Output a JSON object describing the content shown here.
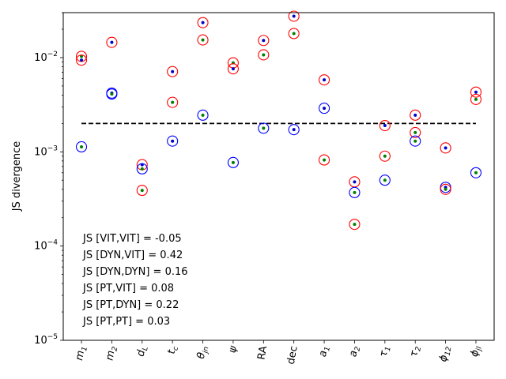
{
  "chart_data": {
    "type": "scatter",
    "title": "",
    "xlabel": "",
    "ylabel": "JS divergence",
    "yscale": "log",
    "ylim": [
      1e-05,
      0.03
    ],
    "y_ticks": [
      {
        "value": 1e-05,
        "base": "10",
        "exp": "−5"
      },
      {
        "value": 0.0001,
        "base": "10",
        "exp": "−4"
      },
      {
        "value": 0.001,
        "base": "10",
        "exp": "−3"
      },
      {
        "value": 0.01,
        "base": "10",
        "exp": "−2"
      }
    ],
    "categories": [
      {
        "main": "m",
        "sub": "1"
      },
      {
        "main": "m",
        "sub": "2"
      },
      {
        "main": "d",
        "sub": "L"
      },
      {
        "main": "t",
        "sub": "c"
      },
      {
        "main": "θ",
        "sub": "jn"
      },
      {
        "main": "ψ",
        "sub": ""
      },
      {
        "main": "RA",
        "sub": "",
        "upright": true
      },
      {
        "main": "dec",
        "sub": "",
        "upright": true
      },
      {
        "main": "a",
        "sub": "1"
      },
      {
        "main": "a",
        "sub": "2"
      },
      {
        "main": "τ",
        "sub": "1"
      },
      {
        "main": "τ",
        "sub": "2"
      },
      {
        "main": "ϕ",
        "sub": "12"
      },
      {
        "main": "ϕ",
        "sub": "jl"
      }
    ],
    "reference_line": {
      "value": 0.002,
      "style": "dashed",
      "color": "#000000"
    },
    "points": [
      {
        "x": 0,
        "y": 0.0103,
        "ring": "#ff0000",
        "dot": "#008000"
      },
      {
        "x": 0,
        "y": 0.0094,
        "ring": "#ff0000",
        "dot": "#0000cc"
      },
      {
        "x": 0,
        "y": 0.00113,
        "ring": "#0000ff",
        "dot": "#008000"
      },
      {
        "x": 1,
        "y": 0.0145,
        "ring": "#ff0000",
        "dot": "#0000cc"
      },
      {
        "x": 1,
        "y": 0.0042,
        "ring": "#0000ff",
        "dot": "#0000cc"
      },
      {
        "x": 1,
        "y": 0.0041,
        "ring": "#0000ff",
        "dot": "#008000"
      },
      {
        "x": 2,
        "y": 0.00073,
        "ring": "#ff0000",
        "dot": "#0000cc"
      },
      {
        "x": 2,
        "y": 0.00066,
        "ring": "#0000ff",
        "dot": "#008000"
      },
      {
        "x": 2,
        "y": 0.00039,
        "ring": "#ff0000",
        "dot": "#008000"
      },
      {
        "x": 3,
        "y": 0.0071,
        "ring": "#ff0000",
        "dot": "#0000cc"
      },
      {
        "x": 3,
        "y": 0.00335,
        "ring": "#ff0000",
        "dot": "#008000"
      },
      {
        "x": 3,
        "y": 0.0013,
        "ring": "#0000ff",
        "dot": "#0000cc"
      },
      {
        "x": 4,
        "y": 0.0235,
        "ring": "#ff0000",
        "dot": "#0000cc"
      },
      {
        "x": 4,
        "y": 0.0154,
        "ring": "#ff0000",
        "dot": "#008000"
      },
      {
        "x": 4,
        "y": 0.00245,
        "ring": "#0000ff",
        "dot": "#008000"
      },
      {
        "x": 5,
        "y": 0.0088,
        "ring": "#ff0000",
        "dot": "#008000"
      },
      {
        "x": 5,
        "y": 0.0076,
        "ring": "#ff0000",
        "dot": "#0000cc"
      },
      {
        "x": 5,
        "y": 0.00077,
        "ring": "#0000ff",
        "dot": "#008000"
      },
      {
        "x": 6,
        "y": 0.0152,
        "ring": "#ff0000",
        "dot": "#0000cc"
      },
      {
        "x": 6,
        "y": 0.0107,
        "ring": "#ff0000",
        "dot": "#008000"
      },
      {
        "x": 6,
        "y": 0.00178,
        "ring": "#0000ff",
        "dot": "#008000"
      },
      {
        "x": 7,
        "y": 0.0275,
        "ring": "#ff0000",
        "dot": "#0000cc"
      },
      {
        "x": 7,
        "y": 0.018,
        "ring": "#ff0000",
        "dot": "#008000"
      },
      {
        "x": 7,
        "y": 0.00172,
        "ring": "#0000ff",
        "dot": "#0000cc"
      },
      {
        "x": 8,
        "y": 0.0058,
        "ring": "#ff0000",
        "dot": "#0000cc"
      },
      {
        "x": 8,
        "y": 0.0029,
        "ring": "#0000ff",
        "dot": "#0000cc"
      },
      {
        "x": 8,
        "y": 0.00082,
        "ring": "#ff0000",
        "dot": "#008000"
      },
      {
        "x": 9,
        "y": 0.00048,
        "ring": "#ff0000",
        "dot": "#0000cc"
      },
      {
        "x": 9,
        "y": 0.00037,
        "ring": "#0000ff",
        "dot": "#008000"
      },
      {
        "x": 9,
        "y": 0.00017,
        "ring": "#ff0000",
        "dot": "#008000"
      },
      {
        "x": 10,
        "y": 0.0019,
        "ring": "#ff0000",
        "dot": "#0000cc"
      },
      {
        "x": 10,
        "y": 0.0009,
        "ring": "#ff0000",
        "dot": "#008000"
      },
      {
        "x": 10,
        "y": 0.0005,
        "ring": "#0000ff",
        "dot": "#008000"
      },
      {
        "x": 11,
        "y": 0.00245,
        "ring": "#ff0000",
        "dot": "#0000cc"
      },
      {
        "x": 11,
        "y": 0.0016,
        "ring": "#ff0000",
        "dot": "#008000"
      },
      {
        "x": 11,
        "y": 0.0013,
        "ring": "#0000ff",
        "dot": "#008000"
      },
      {
        "x": 12,
        "y": 0.0011,
        "ring": "#ff0000",
        "dot": "#0000cc"
      },
      {
        "x": 12,
        "y": 0.00042,
        "ring": "#0000ff",
        "dot": "#0000cc"
      },
      {
        "x": 12,
        "y": 0.0004,
        "ring": "#ff0000",
        "dot": "#008000"
      },
      {
        "x": 13,
        "y": 0.0043,
        "ring": "#ff0000",
        "dot": "#0000cc"
      },
      {
        "x": 13,
        "y": 0.0036,
        "ring": "#ff0000",
        "dot": "#008000"
      },
      {
        "x": 13,
        "y": 0.0006,
        "ring": "#0000ff",
        "dot": "#008000"
      }
    ],
    "annotations": [
      "JS [VIT,VIT] = -0.05",
      "JS [DYN,VIT] = 0.42",
      "JS [DYN,DYN] = 0.16",
      "JS [PT,VIT] = 0.08",
      "JS [PT,DYN] = 0.22",
      "JS [PT,PT] = 0.03"
    ]
  }
}
